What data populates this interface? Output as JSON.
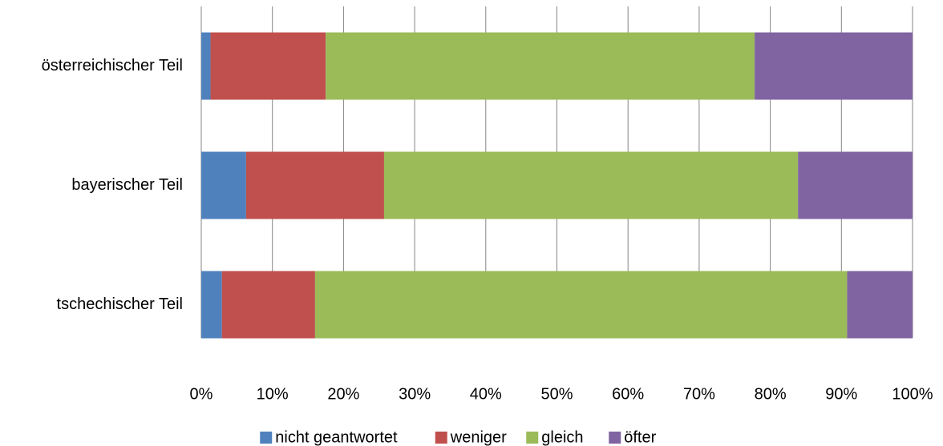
{
  "chart_data": {
    "type": "stacked_barh",
    "categories": [
      "österreichischer Teil",
      "bayerischer Teil",
      "tschechischer Teil"
    ],
    "series": [
      {
        "name": "nicht geantwortet",
        "color": "#4f81bd",
        "values": [
          1.3,
          6.3,
          2.9
        ]
      },
      {
        "name": "weniger",
        "color": "#c0504d",
        "values": [
          16.2,
          19.4,
          13.1
        ]
      },
      {
        "name": "gleich",
        "color": "#9bbb59",
        "values": [
          60.3,
          58.2,
          74.8
        ]
      },
      {
        "name": "öfter",
        "color": "#8064a2",
        "values": [
          22.2,
          16.1,
          9.2
        ]
      }
    ],
    "xlim": [
      0,
      100
    ],
    "xticks": [
      {
        "value": 0,
        "label": "0%"
      },
      {
        "value": 10,
        "label": "10%"
      },
      {
        "value": 20,
        "label": "20%"
      },
      {
        "value": 30,
        "label": "30%"
      },
      {
        "value": 40,
        "label": "40%"
      },
      {
        "value": 50,
        "label": "50%"
      },
      {
        "value": 60,
        "label": "60%"
      },
      {
        "value": 70,
        "label": "70%"
      },
      {
        "value": 80,
        "label": "80%"
      },
      {
        "value": 90,
        "label": "90%"
      },
      {
        "value": 100,
        "label": "100%"
      }
    ],
    "grid": true,
    "legend": "bottom"
  }
}
